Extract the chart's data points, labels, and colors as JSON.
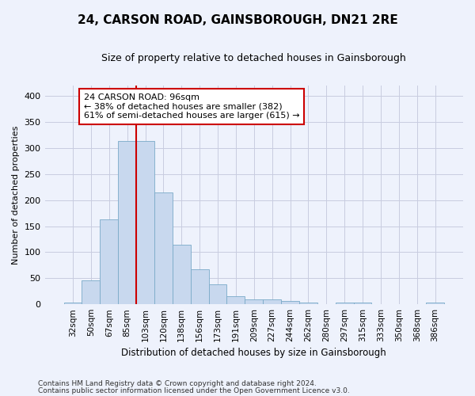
{
  "title": "24, CARSON ROAD, GAINSBOROUGH, DN21 2RE",
  "subtitle": "Size of property relative to detached houses in Gainsborough",
  "xlabel": "Distribution of detached houses by size in Gainsborough",
  "ylabel": "Number of detached properties",
  "categories": [
    "32sqm",
    "50sqm",
    "67sqm",
    "85sqm",
    "103sqm",
    "120sqm",
    "138sqm",
    "156sqm",
    "173sqm",
    "191sqm",
    "209sqm",
    "227sqm",
    "244sqm",
    "262sqm",
    "280sqm",
    "297sqm",
    "315sqm",
    "333sqm",
    "350sqm",
    "368sqm",
    "386sqm"
  ],
  "values": [
    3,
    46,
    163,
    314,
    314,
    214,
    114,
    67,
    38,
    15,
    9,
    9,
    6,
    3,
    0,
    3,
    4,
    0,
    0,
    0,
    3
  ],
  "bar_color": "#c8d8ee",
  "bar_edge_color": "#7aaac8",
  "vline_position": 3.5,
  "vline_color": "#cc0000",
  "annotation_text": "24 CARSON ROAD: 96sqm\n← 38% of detached houses are smaller (382)\n61% of semi-detached houses are larger (615) →",
  "annotation_box_facecolor": "#ffffff",
  "annotation_box_edgecolor": "#cc0000",
  "footer1": "Contains HM Land Registry data © Crown copyright and database right 2024.",
  "footer2": "Contains public sector information licensed under the Open Government Licence v3.0.",
  "ylim_max": 420,
  "yticks": [
    0,
    50,
    100,
    150,
    200,
    250,
    300,
    350,
    400
  ],
  "grid_color": "#c8cce0",
  "background_color": "#eef2fc",
  "title_fontsize": 11,
  "subtitle_fontsize": 9
}
